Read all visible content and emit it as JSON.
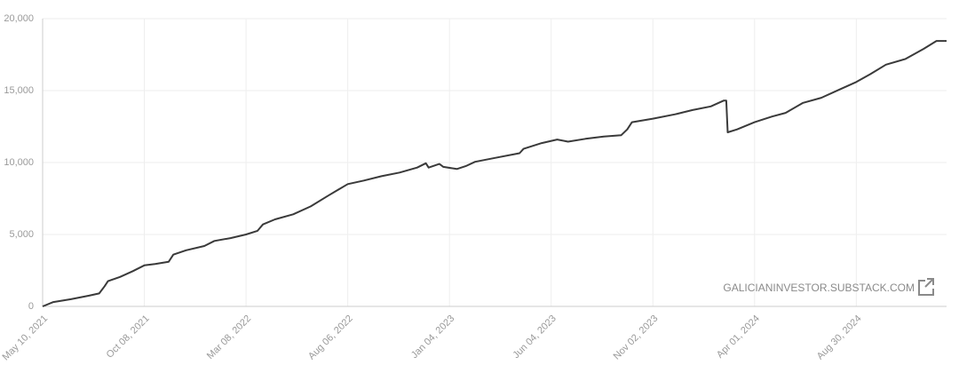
{
  "chart_data": {
    "type": "line",
    "x": [
      "2021-05-10",
      "2021-05-26",
      "2021-06-21",
      "2021-07-18",
      "2021-08-02",
      "2021-08-10",
      "2021-08-15",
      "2021-09-02",
      "2021-09-21",
      "2021-10-08",
      "2021-10-24",
      "2021-11-13",
      "2021-11-20",
      "2021-12-09",
      "2022-01-05",
      "2022-01-20",
      "2022-02-13",
      "2022-03-08",
      "2022-03-25",
      "2022-04-02",
      "2022-04-20",
      "2022-05-17",
      "2022-06-12",
      "2022-07-08",
      "2022-08-06",
      "2022-08-30",
      "2022-09-25",
      "2022-10-22",
      "2022-11-17",
      "2022-11-30",
      "2022-12-04",
      "2022-12-20",
      "2022-12-26",
      "2023-01-15",
      "2023-01-28",
      "2023-02-11",
      "2023-03-16",
      "2023-04-18",
      "2023-04-24",
      "2023-05-21",
      "2023-06-13",
      "2023-06-29",
      "2023-07-25",
      "2023-08-21",
      "2023-09-16",
      "2023-09-25",
      "2023-10-02",
      "2023-11-02",
      "2023-12-05",
      "2023-12-31",
      "2024-01-27",
      "2024-02-15",
      "2024-02-19",
      "2024-02-21",
      "2024-03-06",
      "2024-04-01",
      "2024-04-27",
      "2024-05-17",
      "2024-06-12",
      "2024-07-09",
      "2024-08-04",
      "2024-08-30",
      "2024-09-20",
      "2024-10-13",
      "2024-11-11",
      "2024-12-08",
      "2024-12-27",
      "2025-01-11"
    ],
    "series": [
      {
        "color": "#3a3a3a",
        "values": [
          0,
          300,
          500,
          750,
          900,
          1400,
          1750,
          2050,
          2450,
          2850,
          2950,
          3100,
          3600,
          3900,
          4200,
          4550,
          4750,
          5000,
          5250,
          5700,
          6050,
          6400,
          6950,
          7700,
          8500,
          8750,
          9050,
          9300,
          9650,
          9950,
          9650,
          9900,
          9700,
          9550,
          9750,
          10050,
          10350,
          10650,
          10950,
          11350,
          11600,
          11450,
          11650,
          11800,
          11900,
          12300,
          12800,
          13050,
          13350,
          13650,
          13900,
          14300,
          14300,
          12100,
          12300,
          12800,
          13200,
          13450,
          14150,
          14500,
          15050,
          15600,
          16150,
          16800,
          17200,
          17900,
          18450,
          18450
        ]
      }
    ],
    "xlim": [
      "2021-05-10",
      "2025-01-11"
    ],
    "xticks": [
      {
        "value": "2021-05-10",
        "label": "May 10, 2021"
      },
      {
        "value": "2021-10-08",
        "label": "Oct 08, 2021"
      },
      {
        "value": "2022-03-08",
        "label": "Mar 08, 2022"
      },
      {
        "value": "2022-08-06",
        "label": "Aug 06, 2022"
      },
      {
        "value": "2023-01-04",
        "label": "Jan 04, 2023"
      },
      {
        "value": "2023-06-04",
        "label": "Jun 04, 2023"
      },
      {
        "value": "2023-11-02",
        "label": "Nov 02, 2023"
      },
      {
        "value": "2024-04-01",
        "label": "Apr 01, 2024"
      },
      {
        "value": "2024-08-30",
        "label": "Aug 30, 2024"
      }
    ],
    "ylim": [
      0,
      20000
    ],
    "yticks": [
      0,
      {
        "value": 5000,
        "label": "5,000"
      },
      {
        "value": 10000,
        "label": "10,000"
      },
      {
        "value": 15000,
        "label": "15,000"
      },
      {
        "value": 20000,
        "label": "20,000"
      }
    ],
    "grid": true,
    "watermark": "GALICIANINVESTOR.SUBSTACK.COM"
  }
}
